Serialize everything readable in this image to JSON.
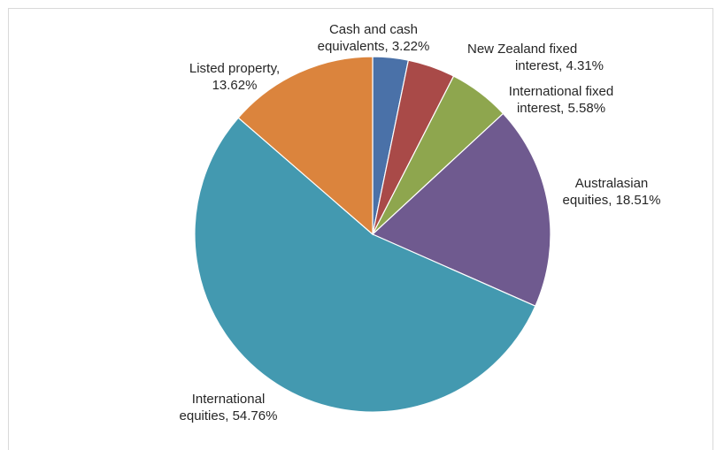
{
  "chart_data": {
    "type": "pie",
    "title": "",
    "slices": [
      {
        "label": "Cash and cash equivalents",
        "value": 3.22,
        "display": "Cash and cash equivalents, 3.22%",
        "color": "#4a71a8"
      },
      {
        "label": "New Zealand fixed interest",
        "value": 4.31,
        "display": "New Zealand fixed interest, 4.31%",
        "color": "#a94a48"
      },
      {
        "label": "International fixed interest",
        "value": 5.58,
        "display": "International fixed interest, 5.58%",
        "color": "#8ea64e"
      },
      {
        "label": "Australasian equities",
        "value": 18.51,
        "display": "Australasian equities, 18.51%",
        "color": "#6f5a8f"
      },
      {
        "label": "International equities",
        "value": 54.76,
        "display": "International equities, 54.76%",
        "color": "#4399b0"
      },
      {
        "label": "Listed property",
        "value": 13.62,
        "display": "Listed property, 13.62%",
        "color": "#db843d"
      }
    ],
    "labels": {
      "cash": [
        "Cash and cash",
        "equivalents, 3.22%"
      ],
      "nz_fixed": [
        "New Zealand fixed",
        "interest, 4.31%"
      ],
      "intl_fixed": [
        "International fixed",
        "interest, 5.58%"
      ],
      "aus_equities": [
        "Australasian",
        "equities, 18.51%"
      ],
      "intl_equities": [
        "International",
        "equities, 54.76%"
      ],
      "listed_property": [
        "Listed property,",
        "13.62%"
      ]
    },
    "legend": "none"
  }
}
